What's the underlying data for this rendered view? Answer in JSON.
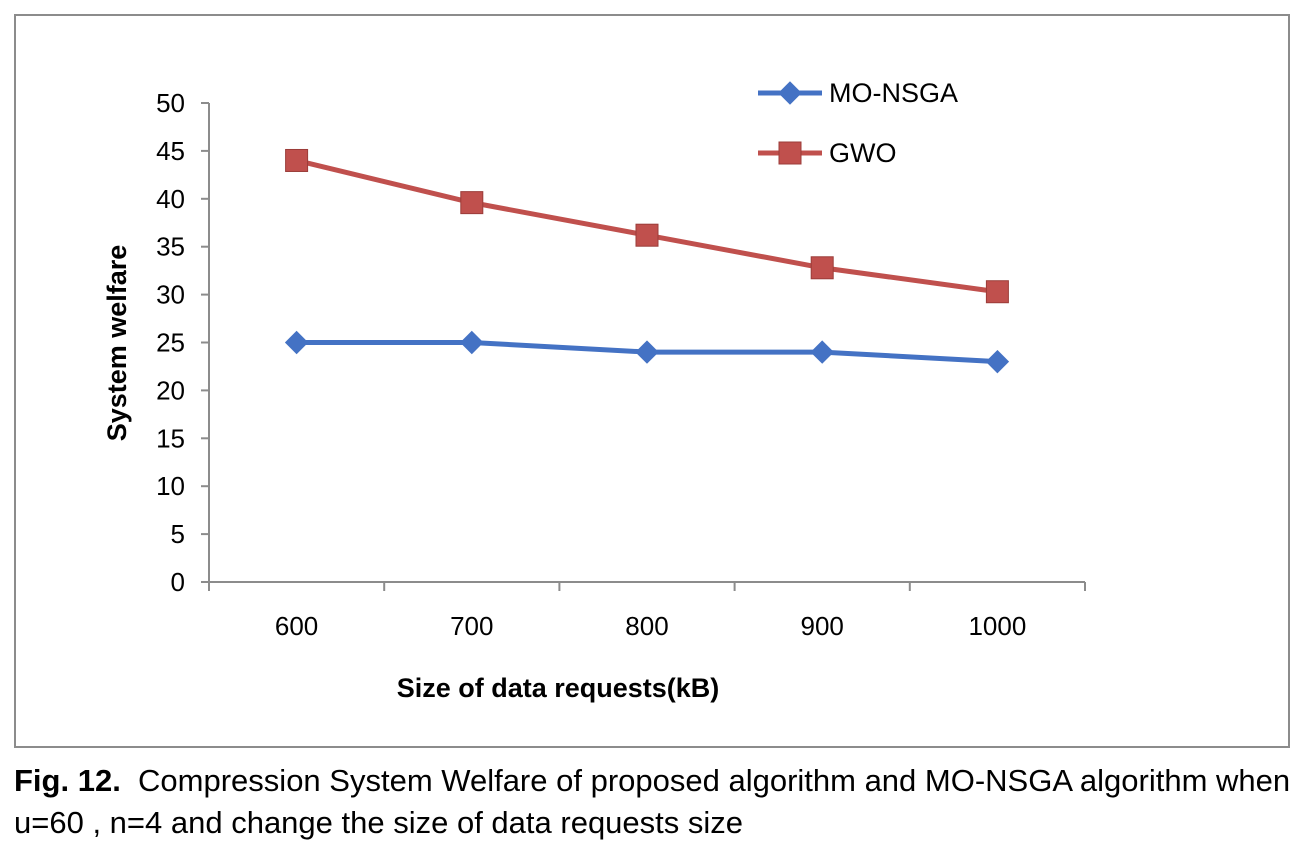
{
  "chart_data": {
    "type": "line",
    "title": "",
    "xlabel": "Size of  data requests(kB)",
    "ylabel": "System welfare",
    "categories": [
      "600",
      "700",
      "800",
      "900",
      "1000"
    ],
    "ylim": [
      0,
      50
    ],
    "yticks": [
      0,
      5,
      10,
      15,
      20,
      25,
      30,
      35,
      40,
      45,
      50
    ],
    "grid": false,
    "legend_position": "top-right",
    "series": [
      {
        "name": "MO-NSGA",
        "values": [
          25,
          25,
          24,
          24,
          23
        ],
        "color": "#4472C4",
        "marker": "diamond"
      },
      {
        "name": "GWO",
        "values": [
          44,
          39.6,
          36.2,
          32.8,
          30.3
        ],
        "color": "#C0504D",
        "marker": "square"
      }
    ]
  },
  "caption": {
    "label": "Fig. 12.",
    "text": "Compression System Welfare of  proposed  algorithm and MO-NSGA algorithm when u=60 , n=4 and change the size of data requests size"
  }
}
